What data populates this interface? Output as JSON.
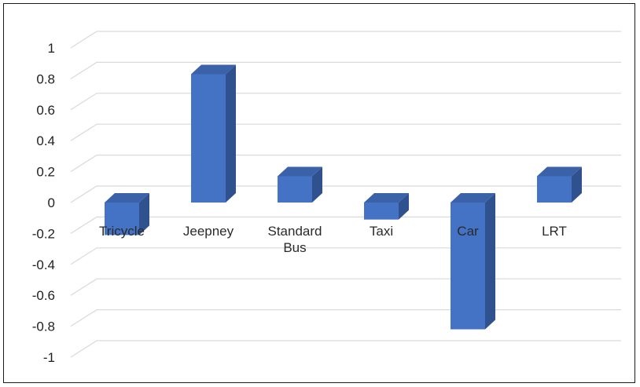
{
  "chart_data": {
    "type": "bar",
    "style": "3d-column",
    "title": "",
    "xlabel": "",
    "ylabel": "",
    "categories": [
      "Tricycle",
      "Jeepney",
      "Standard Bus",
      "Taxi",
      "Car",
      "LRT"
    ],
    "category_lines": [
      [
        "Tricycle"
      ],
      [
        "Jeepney"
      ],
      [
        "Standard",
        "Bus"
      ],
      [
        "Taxi"
      ],
      [
        "Car"
      ],
      [
        "LRT"
      ]
    ],
    "values": [
      -0.21,
      0.83,
      0.17,
      -0.11,
      -0.82,
      0.17
    ],
    "ylim": [
      -1,
      1
    ],
    "yticks": [
      "1",
      "0.8",
      "0.6",
      "0.4",
      "0.2",
      "0",
      "-0.2",
      "-0.4",
      "-0.6",
      "-0.8",
      "-1"
    ],
    "grid": true,
    "legend": "none",
    "colors": {
      "bar_front": "#4472C4",
      "bar_side": "#2F528F",
      "bar_top": "#3B62A9",
      "grid": "#D9D9D9"
    }
  }
}
